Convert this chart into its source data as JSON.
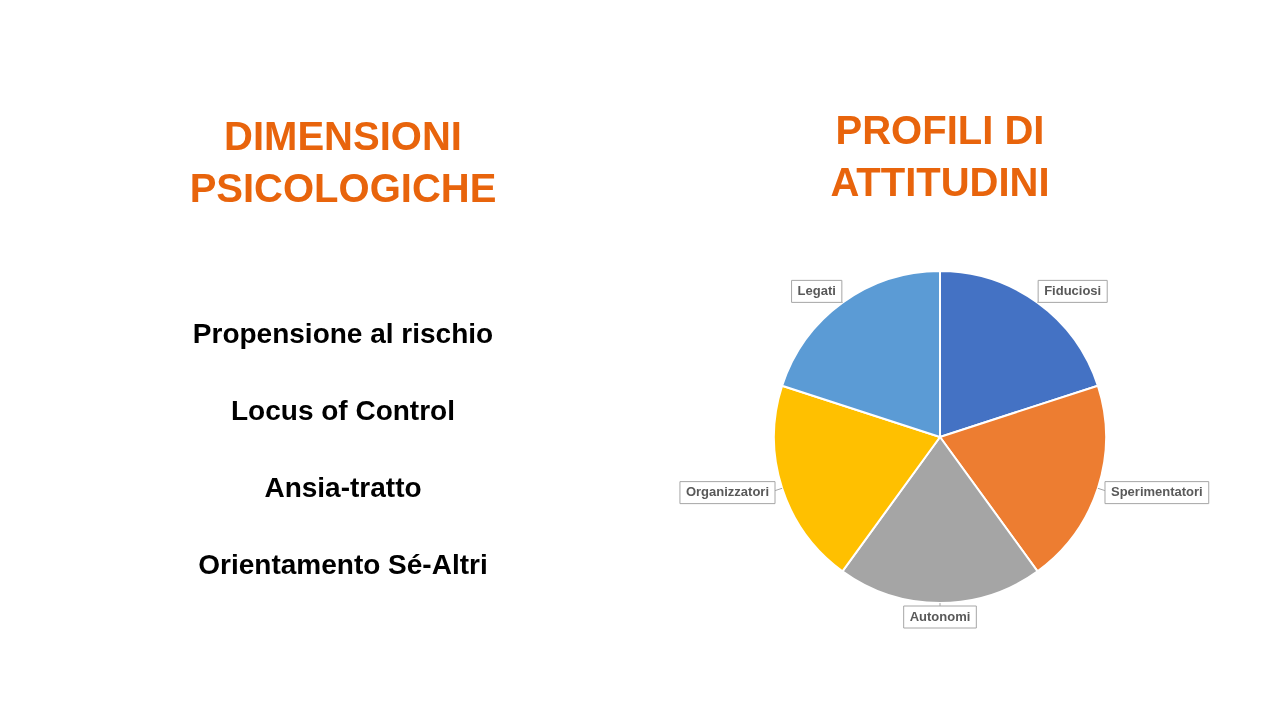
{
  "chart_data": [
    {
      "type": "other",
      "title": "DIMENSIONI PSICOLOGICHE",
      "annotations": [
        "Propensione al rischio",
        "Locus of Control",
        "Ansia-tratto",
        "Orientamento Sé-Altri"
      ]
    },
    {
      "type": "pie",
      "title": "PROFILI DI ATTITUDINI",
      "categories": [
        "Fiduciosi",
        "Sperimentatori",
        "Autonomi",
        "Organizzatori",
        "Legati"
      ],
      "values": [
        20,
        20,
        20,
        20,
        20
      ],
      "colors": [
        "#4472c4",
        "#ed7d31",
        "#a5a5a5",
        "#ffc000",
        "#5b9bd5"
      ],
      "legend": false
    }
  ]
}
